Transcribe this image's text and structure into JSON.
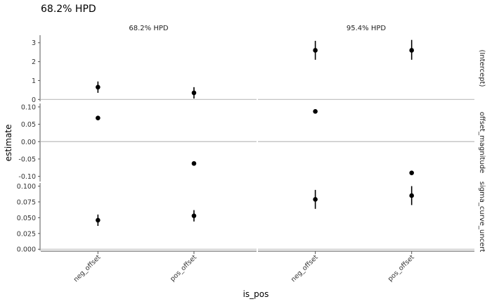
{
  "chart_data": {
    "type": "scatter",
    "title": "68.2% HPD",
    "xlabel": "is_pos",
    "ylabel": "estimate",
    "categories": [
      "neg_offset",
      "pos_offset"
    ],
    "facet_columns": [
      "68.2% HPD",
      "95.4% HPD"
    ],
    "facet_rows": [
      {
        "label": "(Intercept)",
        "ylim": [
          -0.1,
          3.4
        ],
        "ticks": [
          0,
          1,
          2,
          3
        ],
        "tick_labels": [
          "0",
          "1",
          "2",
          "3"
        ],
        "hline": 0,
        "points": [
          [
            {
              "estimate": 0.65,
              "low": 0.35,
              "high": 0.95
            },
            {
              "estimate": 0.35,
              "low": 0.05,
              "high": 0.65
            }
          ],
          [
            {
              "estimate": 2.6,
              "low": 2.1,
              "high": 3.1
            },
            {
              "estimate": 2.6,
              "low": 2.1,
              "high": 3.15
            }
          ]
        ]
      },
      {
        "label": "offset_magnitude",
        "ylim": [
          -0.115,
          0.11
        ],
        "ticks": [
          0.1,
          0.05,
          0,
          -0.05,
          -0.1
        ],
        "tick_labels": [
          "0.10",
          "0.05",
          "0.00",
          "-0.05",
          "-0.10"
        ],
        "hline": 0,
        "points": [
          [
            {
              "estimate": 0.068,
              "low": 0.066,
              "high": 0.07
            },
            {
              "estimate": -0.063,
              "low": -0.065,
              "high": -0.061
            }
          ],
          [
            {
              "estimate": 0.087,
              "low": 0.082,
              "high": 0.092
            },
            {
              "estimate": -0.09,
              "low": -0.095,
              "high": -0.085
            }
          ]
        ]
      },
      {
        "label": "sigma_curve_uncert",
        "ylim": [
          -0.002,
          0.105
        ],
        "ticks": [
          0.1,
          0.075,
          0.05,
          0.025,
          0
        ],
        "tick_labels": [
          "0.100",
          "0.075",
          "0.050",
          "0.025",
          "0.000"
        ],
        "hline": 0,
        "points": [
          [
            {
              "estimate": 0.046,
              "low": 0.037,
              "high": 0.055
            },
            {
              "estimate": 0.053,
              "low": 0.044,
              "high": 0.062
            }
          ],
          [
            {
              "estimate": 0.079,
              "low": 0.064,
              "high": 0.094
            },
            {
              "estimate": 0.085,
              "low": 0.07,
              "high": 0.1
            }
          ]
        ]
      }
    ]
  }
}
